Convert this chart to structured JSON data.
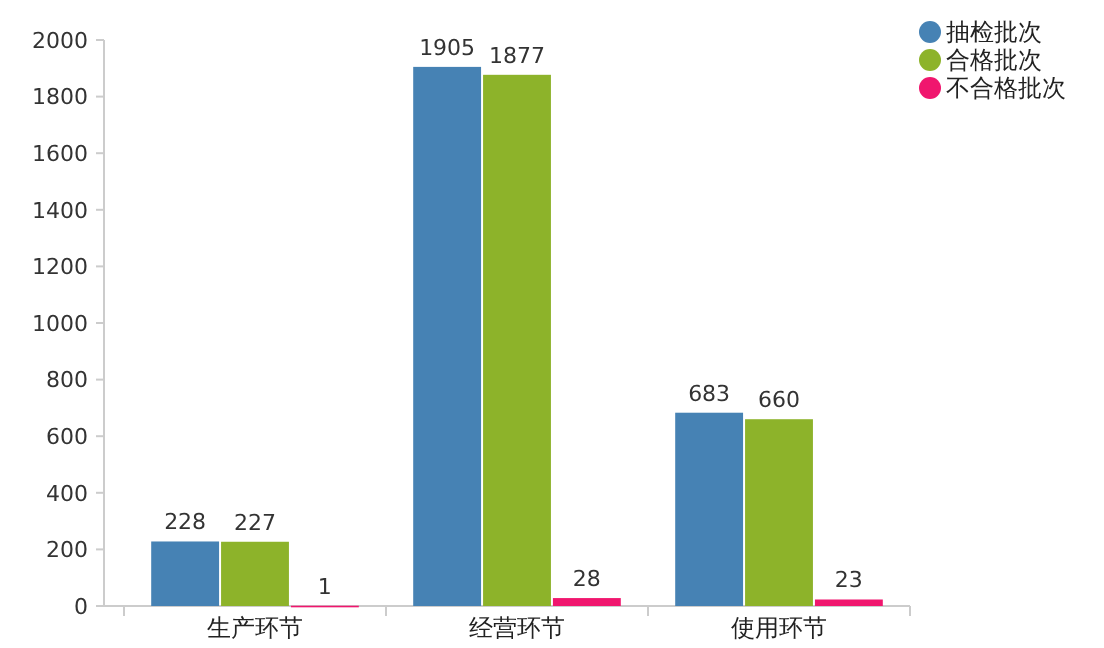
{
  "chart_data": {
    "type": "bar",
    "categories": [
      "生产环节",
      "经营环节",
      "使用环节"
    ],
    "series": [
      {
        "name": "抽检批次",
        "color": "#4682b4",
        "values": [
          228,
          1905,
          683
        ]
      },
      {
        "name": "合格批次",
        "color": "#8db32a",
        "values": [
          227,
          1877,
          660
        ]
      },
      {
        "name": "不合格批次",
        "color": "#f0166e",
        "values": [
          1,
          28,
          23
        ]
      }
    ],
    "ylim": [
      0,
      2000
    ],
    "yticks": [
      0,
      200,
      400,
      600,
      800,
      1000,
      1200,
      1400,
      1600,
      1800,
      2000
    ],
    "data_labels": true,
    "legend": "top right",
    "grid": false
  }
}
